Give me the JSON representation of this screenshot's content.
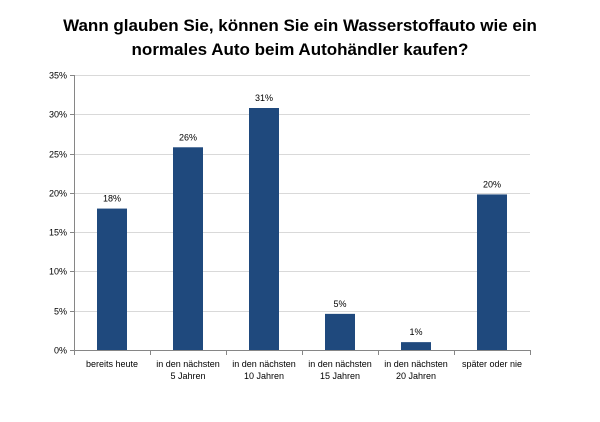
{
  "chart_data": {
    "type": "bar",
    "title_lines": [
      "Wann glauben Sie, können Sie ein Wasserstoffauto wie ein",
      "normales Auto beim Autohändler kaufen?"
    ],
    "categories": [
      [
        "bereits heute"
      ],
      [
        "in den nächsten",
        "5 Jahren"
      ],
      [
        "in den nächsten",
        "10 Jahren"
      ],
      [
        "in den nächsten",
        "15 Jahren"
      ],
      [
        "in den nächsten",
        "20 Jahren"
      ],
      [
        "später oder nie"
      ]
    ],
    "values": [
      18,
      25.8,
      30.8,
      4.6,
      1,
      19.8
    ],
    "data_labels": [
      "18%",
      "26%",
      "31%",
      "5%",
      "1%",
      "20%"
    ],
    "ylim": [
      0,
      35
    ],
    "yticks": [
      0,
      5,
      10,
      15,
      20,
      25,
      30,
      35
    ],
    "ytick_labels": [
      "0%",
      "5%",
      "10%",
      "15%",
      "20%",
      "25%",
      "30%",
      "35%"
    ],
    "xlabel": "",
    "ylabel": "",
    "grid": true,
    "legend": "none",
    "bar_color": "#1f497d",
    "grid_color": "#d9d9d9",
    "axis_color": "#868686"
  }
}
